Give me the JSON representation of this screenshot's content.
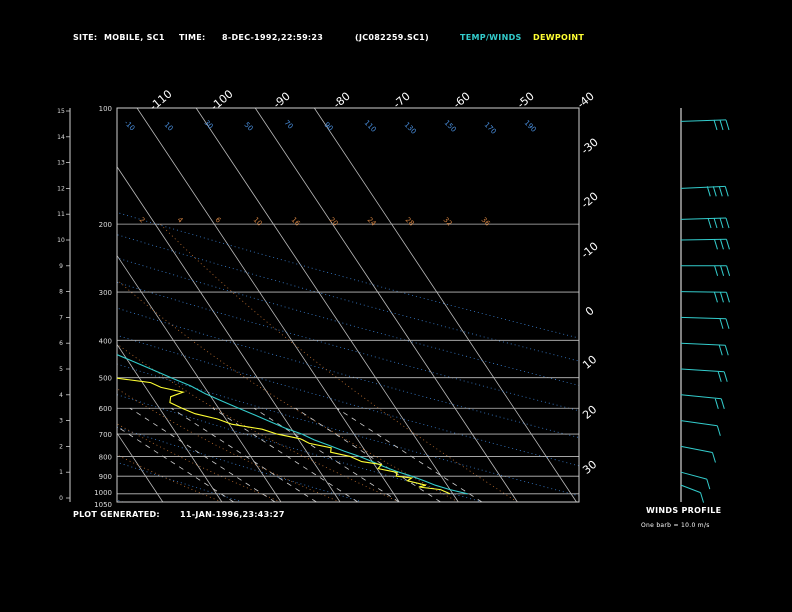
{
  "header": {
    "site_label": "SITE:",
    "site": "MOBILE, SC1",
    "time_label": "TIME:",
    "time": "8-DEC-1992,22:59:23",
    "file": "(JC082259.SC1)",
    "temp_legend": "TEMP/WINDS",
    "dew_legend": "DEWPOINT"
  },
  "footer": {
    "generated_label": "PLOT GENERATED:",
    "generated": "11-JAN-1996,23:43:27"
  },
  "winds_panel": {
    "title": "WINDS PROFILE",
    "note": "One barb = 10.0 m/s"
  },
  "colors": {
    "temp": "#33cccc",
    "dew": "#ffff33",
    "frame": "#cfcfcf",
    "header": "#ffffff",
    "legend_temp": "#33cccc",
    "legend_dew": "#ffff33"
  },
  "chart_data": {
    "type": "line",
    "title": "",
    "skewt": true,
    "pressure_labels": [
      "100",
      "200",
      "300",
      "400",
      "500",
      "600",
      "700",
      "800",
      "900",
      "1000",
      "1050"
    ],
    "pressure_levels": [
      100,
      200,
      300,
      400,
      500,
      600,
      700,
      800,
      900,
      1000,
      1050
    ],
    "height_labels": [
      "0",
      "1",
      "2",
      "3",
      "4",
      "5",
      "6",
      "7",
      "8",
      "9",
      "10",
      "11",
      "12",
      "13",
      "14",
      "15"
    ],
    "height_km": [
      0,
      1,
      2,
      3,
      4,
      5,
      6,
      7,
      8,
      9,
      10,
      11,
      12,
      13,
      14,
      15
    ],
    "top_temp_labels": [
      "-110",
      "-100",
      "-90",
      "-80",
      "-70",
      "-60",
      "-50",
      "-40"
    ],
    "right_temp_labels": [
      "-30",
      "-20",
      "-10",
      "0",
      "10",
      "20",
      "30"
    ],
    "isotherms_c": [
      -110,
      -100,
      -90,
      -80,
      -70,
      -60,
      -50,
      -40,
      -30,
      -20,
      -10,
      0,
      10,
      20,
      30,
      40
    ],
    "series": [
      {
        "name": "TEMP/WINDS",
        "points": [
          {
            "p": 1000,
            "t": 22.5
          },
          {
            "p": 975,
            "t": 20.0
          },
          {
            "p": 950,
            "t": 18.0
          },
          {
            "p": 925,
            "t": 16.6
          },
          {
            "p": 900,
            "t": 15.0
          },
          {
            "p": 875,
            "t": 13.0
          },
          {
            "p": 850,
            "t": 11.4
          },
          {
            "p": 825,
            "t": 10.0
          },
          {
            "p": 800,
            "t": 8.4
          },
          {
            "p": 775,
            "t": 6.4
          },
          {
            "p": 750,
            "t": 4.6
          },
          {
            "p": 725,
            "t": 2.6
          },
          {
            "p": 700,
            "t": 1.2
          },
          {
            "p": 675,
            "t": -1.0
          },
          {
            "p": 650,
            "t": -2.8
          },
          {
            "p": 625,
            "t": -4.6
          },
          {
            "p": 600,
            "t": -6.6
          },
          {
            "p": 575,
            "t": -8.6
          },
          {
            "p": 550,
            "t": -10.6
          },
          {
            "p": 525,
            "t": -12.2
          },
          {
            "p": 500,
            "t": -14.6
          },
          {
            "p": 475,
            "t": -17.0
          },
          {
            "p": 450,
            "t": -19.6
          },
          {
            "p": 425,
            "t": -22.4
          },
          {
            "p": 400,
            "t": -25.4
          },
          {
            "p": 375,
            "t": -28.6
          },
          {
            "p": 350,
            "t": -32.0
          },
          {
            "p": 325,
            "t": -35.6
          },
          {
            "p": 300,
            "t": -39.6
          },
          {
            "p": 275,
            "t": -43.8
          },
          {
            "p": 250,
            "t": -47.8
          },
          {
            "p": 225,
            "t": -52.0
          },
          {
            "p": 200,
            "t": -56.2
          },
          {
            "p": 180,
            "t": -59.6
          },
          {
            "p": 160,
            "t": -63.0
          },
          {
            "p": 140,
            "t": -66.4
          },
          {
            "p": 125,
            "t": -69.4
          },
          {
            "p": 115,
            "t": -71.8
          },
          {
            "p": 105,
            "t": -73.8
          },
          {
            "p": 100,
            "t": -74.6
          }
        ]
      },
      {
        "name": "DEWPOINT",
        "points": [
          {
            "p": 1000,
            "t": 19.5
          },
          {
            "p": 975,
            "t": 18.4
          },
          {
            "p": 960,
            "t": 15.0
          },
          {
            "p": 950,
            "t": 16.4
          },
          {
            "p": 925,
            "t": 13.8
          },
          {
            "p": 910,
            "t": 14.8
          },
          {
            "p": 900,
            "t": 12.4
          },
          {
            "p": 880,
            "t": 13.0
          },
          {
            "p": 860,
            "t": 10.2
          },
          {
            "p": 840,
            "t": 11.2
          },
          {
            "p": 825,
            "t": 8.2
          },
          {
            "p": 800,
            "t": 6.8
          },
          {
            "p": 780,
            "t": 4.0
          },
          {
            "p": 760,
            "t": 4.6
          },
          {
            "p": 740,
            "t": 1.4
          },
          {
            "p": 720,
            "t": 0.4
          },
          {
            "p": 700,
            "t": -3.0
          },
          {
            "p": 680,
            "t": -5.0
          },
          {
            "p": 660,
            "t": -9.6
          },
          {
            "p": 640,
            "t": -11.4
          },
          {
            "p": 620,
            "t": -14.6
          },
          {
            "p": 600,
            "t": -16.2
          },
          {
            "p": 580,
            "t": -17.6
          },
          {
            "p": 560,
            "t": -16.8
          },
          {
            "p": 545,
            "t": -14.2
          },
          {
            "p": 530,
            "t": -17.4
          },
          {
            "p": 515,
            "t": -18.6
          },
          {
            "p": 500,
            "t": -24.4
          },
          {
            "p": 490,
            "t": -30.0
          },
          {
            "p": 480,
            "t": -33.6
          },
          {
            "p": 470,
            "t": -37.0
          },
          {
            "p": 460,
            "t": -39.4
          },
          {
            "p": 450,
            "t": -39.0
          },
          {
            "p": 440,
            "t": -41.8
          },
          {
            "p": 430,
            "t": -40.2
          },
          {
            "p": 420,
            "t": -43.6
          },
          {
            "p": 410,
            "t": -41.8
          },
          {
            "p": 400,
            "t": -45.4
          },
          {
            "p": 390,
            "t": -48.2
          },
          {
            "p": 380,
            "t": -47.0
          },
          {
            "p": 370,
            "t": -50.8
          },
          {
            "p": 360,
            "t": -52.4
          },
          {
            "p": 350,
            "t": -54.0
          },
          {
            "p": 340,
            "t": -52.6
          },
          {
            "p": 330,
            "t": -56.8
          },
          {
            "p": 320,
            "t": -54.4
          },
          {
            "p": 312,
            "t": -57.6
          },
          {
            "p": 305,
            "t": -55.6
          },
          {
            "p": 298,
            "t": -58.4
          },
          {
            "p": 290,
            "t": -61.2
          },
          {
            "p": 282,
            "t": -63.8
          },
          {
            "p": 272,
            "t": -66.8
          },
          {
            "p": 262,
            "t": -67.6
          },
          {
            "p": 256,
            "t": -70.4
          },
          {
            "p": 250,
            "t": -72.2
          },
          {
            "p": 245,
            "t": -70.0
          },
          {
            "p": 240,
            "t": -66.0
          },
          {
            "p": 235,
            "t": -71.0
          },
          {
            "p": 228,
            "t": -73.6
          },
          {
            "p": 218,
            "t": -75.8
          },
          {
            "p": 205,
            "t": -76.6
          },
          {
            "p": 192,
            "t": -76.2
          },
          {
            "p": 180,
            "t": -74.4
          },
          {
            "p": 168,
            "t": -75.6
          },
          {
            "p": 156,
            "t": -77.0
          },
          {
            "p": 145,
            "t": -78.0
          },
          {
            "p": 132,
            "t": -79.2
          },
          {
            "p": 120,
            "t": -79.8
          },
          {
            "p": 108,
            "t": -80.0
          },
          {
            "p": 100,
            "t": -80.4
          }
        ]
      }
    ],
    "mixing_ratio_labels": [
      "2",
      "4",
      "6",
      "10",
      "16",
      "20",
      "24",
      "28",
      "32",
      "36"
    ],
    "theta_labels": [
      "-10",
      "10",
      "30",
      "50",
      "70",
      "90",
      "110",
      "130",
      "150",
      "170",
      "190"
    ],
    "winds": [
      {
        "h_km": 14.6,
        "dir": 260,
        "spd": 30
      },
      {
        "h_km": 12.0,
        "dir": 255,
        "spd": 40
      },
      {
        "h_km": 10.8,
        "dir": 260,
        "spd": 35
      },
      {
        "h_km": 10.0,
        "dir": 265,
        "spd": 30
      },
      {
        "h_km": 9.0,
        "dir": 270,
        "spd": 30
      },
      {
        "h_km": 8.0,
        "dir": 275,
        "spd": 25
      },
      {
        "h_km": 7.0,
        "dir": 280,
        "spd": 20
      },
      {
        "h_km": 6.0,
        "dir": 285,
        "spd": 20
      },
      {
        "h_km": 5.0,
        "dir": 290,
        "spd": 15
      },
      {
        "h_km": 4.0,
        "dir": 300,
        "spd": 15
      },
      {
        "h_km": 3.0,
        "dir": 310,
        "spd": 10
      },
      {
        "h_km": 2.0,
        "dir": 320,
        "spd": 10
      },
      {
        "h_km": 1.0,
        "dir": 330,
        "spd": 10
      },
      {
        "h_km": 0.5,
        "dir": 340,
        "spd": 5
      }
    ]
  }
}
